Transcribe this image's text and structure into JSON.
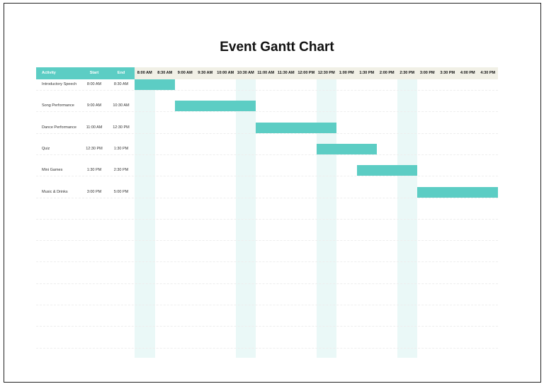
{
  "title": "Event Gantt Chart",
  "chart_data": {
    "type": "gantt",
    "title": "Event Gantt Chart",
    "columns": [
      "Activity",
      "Start",
      "End"
    ],
    "time_slots": [
      "8:00 AM",
      "8:30 AM",
      "9:00 AM",
      "9:30 AM",
      "10:00 AM",
      "10:30 AM",
      "11:00 AM",
      "11:30 AM",
      "12:00 PM",
      "12:30 PM",
      "1:00 PM",
      "1:30 PM",
      "2:00 PM",
      "2:30 PM",
      "3:00 PM",
      "3:30 PM",
      "4:00 PM",
      "4:30 PM"
    ],
    "highlighted_slots": [
      "8:00 AM",
      "10:30 AM",
      "12:30 PM",
      "2:30 PM"
    ],
    "tasks": [
      {
        "activity": "Introductory Speech",
        "start": "8:00 AM",
        "end": "8:30 AM"
      },
      {
        "activity": "Song Performance",
        "start": "9:00 AM",
        "end": "10:30 AM"
      },
      {
        "activity": "Dance Performance",
        "start": "11:00 AM",
        "end": "12:30 PM"
      },
      {
        "activity": "Quiz",
        "start": "12:30 PM",
        "end": "1:30 PM"
      },
      {
        "activity": "Mini Games",
        "start": "1:30 PM",
        "end": "2:30 PM"
      },
      {
        "activity": "Music & Drinks",
        "start": "3:00 PM",
        "end": "5:00 PM"
      }
    ],
    "bar_color": "#5ccdc4",
    "header_color": "#5ccdc4",
    "highlight_color": "#eaf8f7"
  }
}
